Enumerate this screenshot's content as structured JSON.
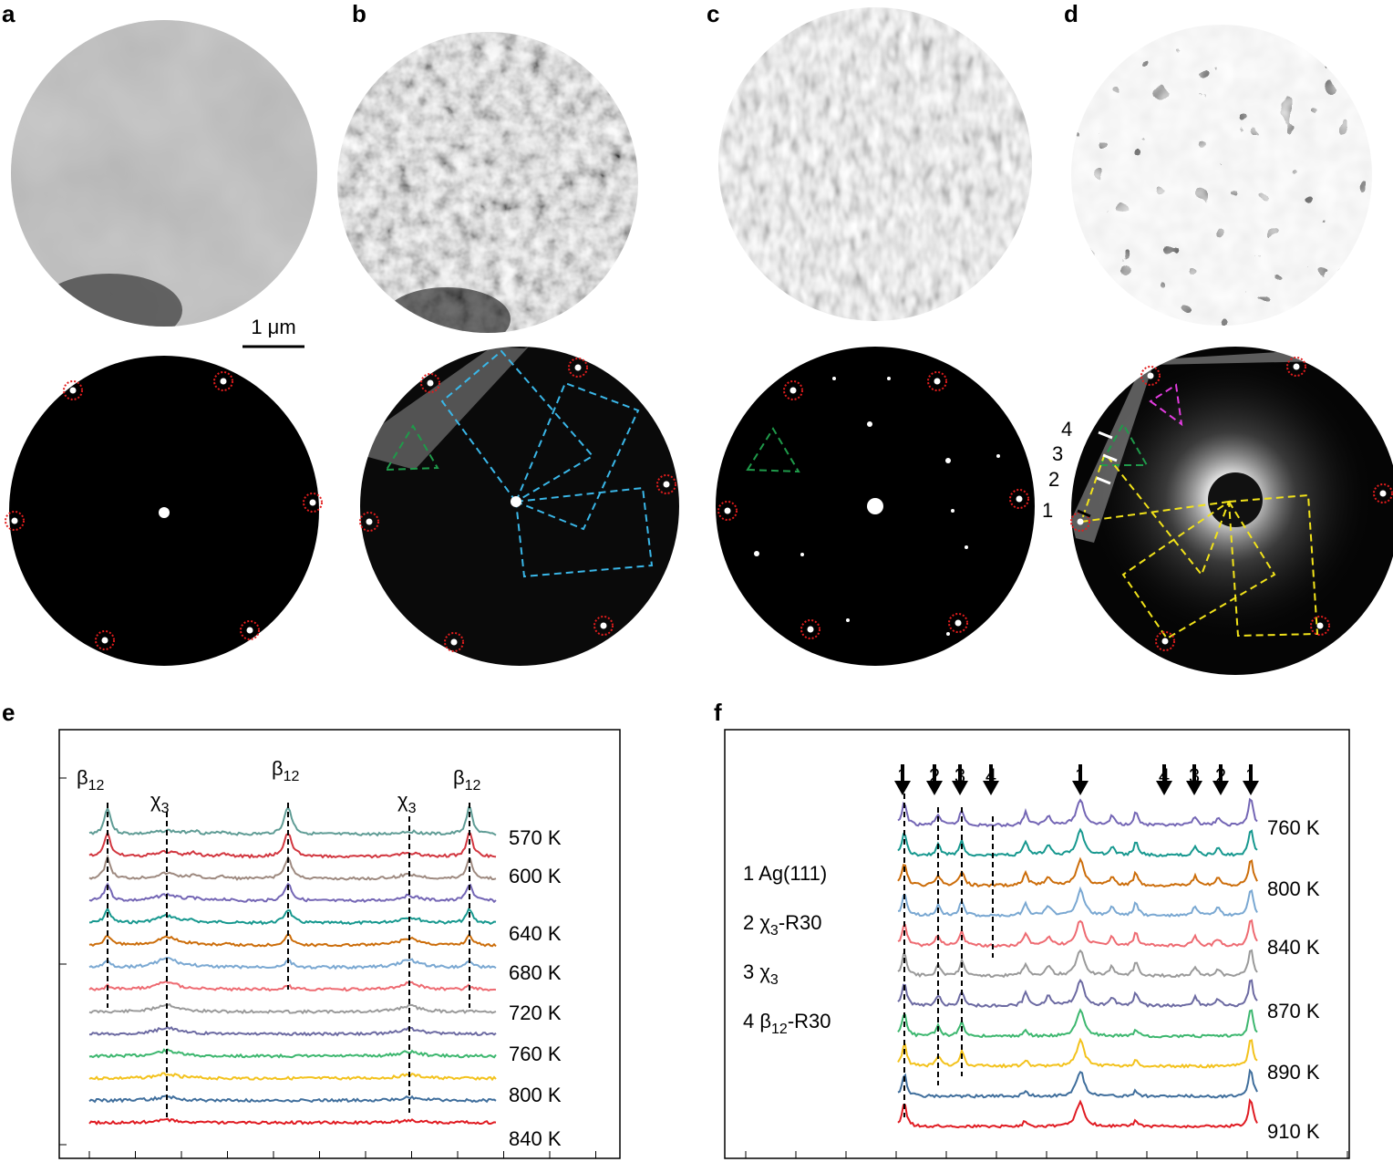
{
  "panels": {
    "a": "a",
    "b": "b",
    "c": "c",
    "d": "d",
    "e": "e",
    "f": "f"
  },
  "scale_bar": "1 μm",
  "d_arrows": [
    "4",
    "3",
    "2",
    "1"
  ],
  "e": {
    "peaks": [
      {
        "base": "β",
        "sub": "12"
      },
      {
        "base": "χ",
        "sub": "3"
      },
      {
        "base": "β",
        "sub": "12"
      },
      {
        "base": "χ",
        "sub": "3"
      },
      {
        "base": "β",
        "sub": "12"
      }
    ],
    "traces": [
      "#5f9c95",
      "#d2363f",
      "#9e8a80",
      "#7466b5",
      "#17988f",
      "#cc6d0a",
      "#7aa8d2",
      "#ee6b72",
      "#9a9a9a",
      "#6c6aa2",
      "#3db76f",
      "#f3c21c",
      "#3f6e9c",
      "#e01b22"
    ],
    "labels": [
      {
        "text": "570 K",
        "color": "#5f9c95"
      },
      {
        "text": "600 K",
        "color": "#d2363f"
      },
      {
        "text": "640 K",
        "color": "#7466b5"
      },
      {
        "text": "680 K",
        "color": "#cc6d0a"
      },
      {
        "text": "720 K",
        "color": "#ee6b72"
      },
      {
        "text": "760 K",
        "color": "#6c6aa2"
      },
      {
        "text": "800 K",
        "color": "#f3c21c"
      },
      {
        "text": "840 K",
        "color": "#e01b22"
      }
    ]
  },
  "f": {
    "arrows": [
      "1",
      "2",
      "3",
      "4",
      "1",
      "4",
      "3",
      "2",
      "1"
    ],
    "legend": [
      {
        "num": "1",
        "base": "Ag(111)",
        "sub": "",
        "tail": ""
      },
      {
        "num": "2",
        "base": "χ",
        "sub": "3",
        "tail": "-R30"
      },
      {
        "num": "3",
        "base": "χ",
        "sub": "3",
        "tail": ""
      },
      {
        "num": "4",
        "base": "β",
        "sub": "12",
        "tail": "-R30"
      }
    ],
    "traces": [
      "#7466b5",
      "#17988f",
      "#cc6d0a",
      "#7aa8d2",
      "#ee6b72",
      "#9a9a9a",
      "#6c6aa2",
      "#3db76f",
      "#f3c21c",
      "#3f6e9c",
      "#e01b22"
    ],
    "labels": [
      {
        "text": "760 K",
        "color": "#7466b5"
      },
      {
        "text": "800 K",
        "color": "#cc6d0a"
      },
      {
        "text": "840 K",
        "color": "#ee6b72"
      },
      {
        "text": "870 K",
        "color": "#6c6aa2"
      },
      {
        "text": "890 K",
        "color": "#f3c21c"
      },
      {
        "text": "910 K",
        "color": "#e01b22"
      }
    ]
  }
}
